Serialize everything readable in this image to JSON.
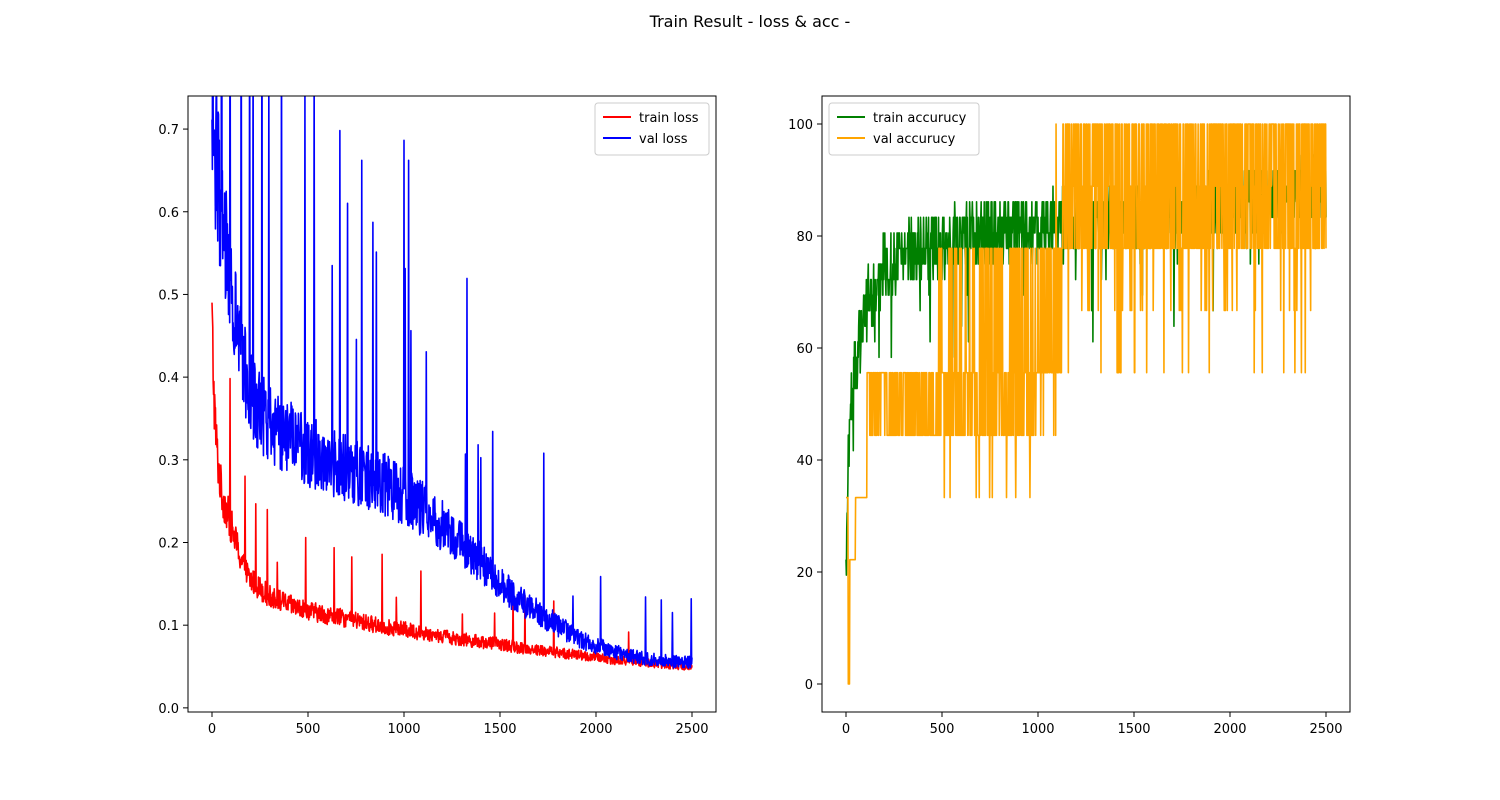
{
  "figure": {
    "title": "Train Result - loss & acc -"
  },
  "chart_data": [
    {
      "type": "line",
      "title": "",
      "xlabel": "",
      "ylabel": "",
      "xlim": [
        -125,
        2625
      ],
      "ylim": [
        -0.005,
        0.74
      ],
      "xticks": [
        0,
        500,
        1000,
        1500,
        2000,
        2500
      ],
      "yticks": [
        0.0,
        0.1,
        0.2,
        0.3,
        0.4,
        0.5,
        0.6,
        0.7
      ],
      "ytick_labels": [
        "0.0",
        "0.1",
        "0.2",
        "0.3",
        "0.4",
        "0.5",
        "0.6",
        "0.7"
      ],
      "legend_position": "upper right",
      "grid": false,
      "series": [
        {
          "name": "train loss",
          "color": "#ff0000",
          "x": [
            0,
            10,
            20,
            30,
            50,
            75,
            100,
            125,
            150,
            175,
            200,
            250,
            300,
            350,
            400,
            450,
            500,
            600,
            700,
            800,
            900,
            1000,
            1100,
            1200,
            1300,
            1400,
            1500,
            1600,
            1700,
            1800,
            1900,
            2000,
            2100,
            2200,
            2300,
            2400,
            2500
          ],
          "y": [
            0.47,
            0.38,
            0.33,
            0.3,
            0.26,
            0.24,
            0.22,
            0.2,
            0.18,
            0.165,
            0.155,
            0.145,
            0.135,
            0.13,
            0.125,
            0.12,
            0.118,
            0.112,
            0.108,
            0.103,
            0.098,
            0.095,
            0.09,
            0.087,
            0.083,
            0.08,
            0.077,
            0.073,
            0.07,
            0.067,
            0.064,
            0.061,
            0.058,
            0.056,
            0.054,
            0.052,
            0.05
          ]
        },
        {
          "name": "val loss",
          "color": "#0000ff",
          "x": [
            0,
            10,
            20,
            30,
            50,
            75,
            100,
            125,
            150,
            175,
            200,
            250,
            300,
            350,
            400,
            450,
            500,
            600,
            700,
            800,
            900,
            1000,
            1100,
            1200,
            1300,
            1400,
            1500,
            1600,
            1700,
            1800,
            1900,
            2000,
            2100,
            2200,
            2300,
            2400,
            2500
          ],
          "y": [
            0.67,
            0.68,
            0.67,
            0.64,
            0.6,
            0.55,
            0.5,
            0.46,
            0.43,
            0.4,
            0.38,
            0.36,
            0.345,
            0.335,
            0.33,
            0.32,
            0.31,
            0.3,
            0.29,
            0.28,
            0.27,
            0.255,
            0.24,
            0.22,
            0.2,
            0.175,
            0.15,
            0.13,
            0.115,
            0.1,
            0.085,
            0.075,
            0.068,
            0.062,
            0.058,
            0.056,
            0.055
          ]
        }
      ]
    },
    {
      "type": "line",
      "title": "",
      "xlabel": "",
      "ylabel": "",
      "xlim": [
        -125,
        2625
      ],
      "ylim": [
        -5,
        105
      ],
      "xticks": [
        0,
        500,
        1000,
        1500,
        2000,
        2500
      ],
      "yticks": [
        0,
        20,
        40,
        60,
        80,
        100
      ],
      "ytick_labels": [
        "0",
        "20",
        "40",
        "60",
        "80",
        "100"
      ],
      "legend_position": "upper left",
      "grid": false,
      "series": [
        {
          "name": "train accurucy",
          "color": "#008000",
          "x": [
            0,
            10,
            20,
            30,
            50,
            75,
            100,
            125,
            150,
            200,
            250,
            300,
            400,
            500,
            600,
            700,
            800,
            900,
            1000,
            1200,
            1400,
            1600,
            1800,
            2000,
            2200,
            2400,
            2500
          ],
          "y": [
            20,
            40,
            47,
            52,
            57,
            62,
            66,
            69,
            71,
            74,
            76,
            77,
            78,
            79,
            80,
            80.5,
            81,
            81,
            81.5,
            82,
            83,
            84,
            85,
            86,
            87,
            87.5,
            88
          ]
        },
        {
          "name": "val accurucy",
          "color": "#ffa500",
          "x": [
            0,
            10,
            20,
            50,
            75,
            100,
            125,
            150,
            300,
            450,
            500,
            600,
            800,
            1000,
            1100,
            1200,
            1400,
            1600,
            1800,
            2000,
            2200,
            2400,
            2500
          ],
          "y": [
            33.3,
            0,
            22.2,
            33.3,
            33.3,
            44.4,
            50,
            50,
            50,
            52,
            60,
            62,
            64,
            66,
            70,
            80,
            85,
            85,
            86,
            87,
            88,
            88,
            88
          ]
        }
      ]
    }
  ]
}
